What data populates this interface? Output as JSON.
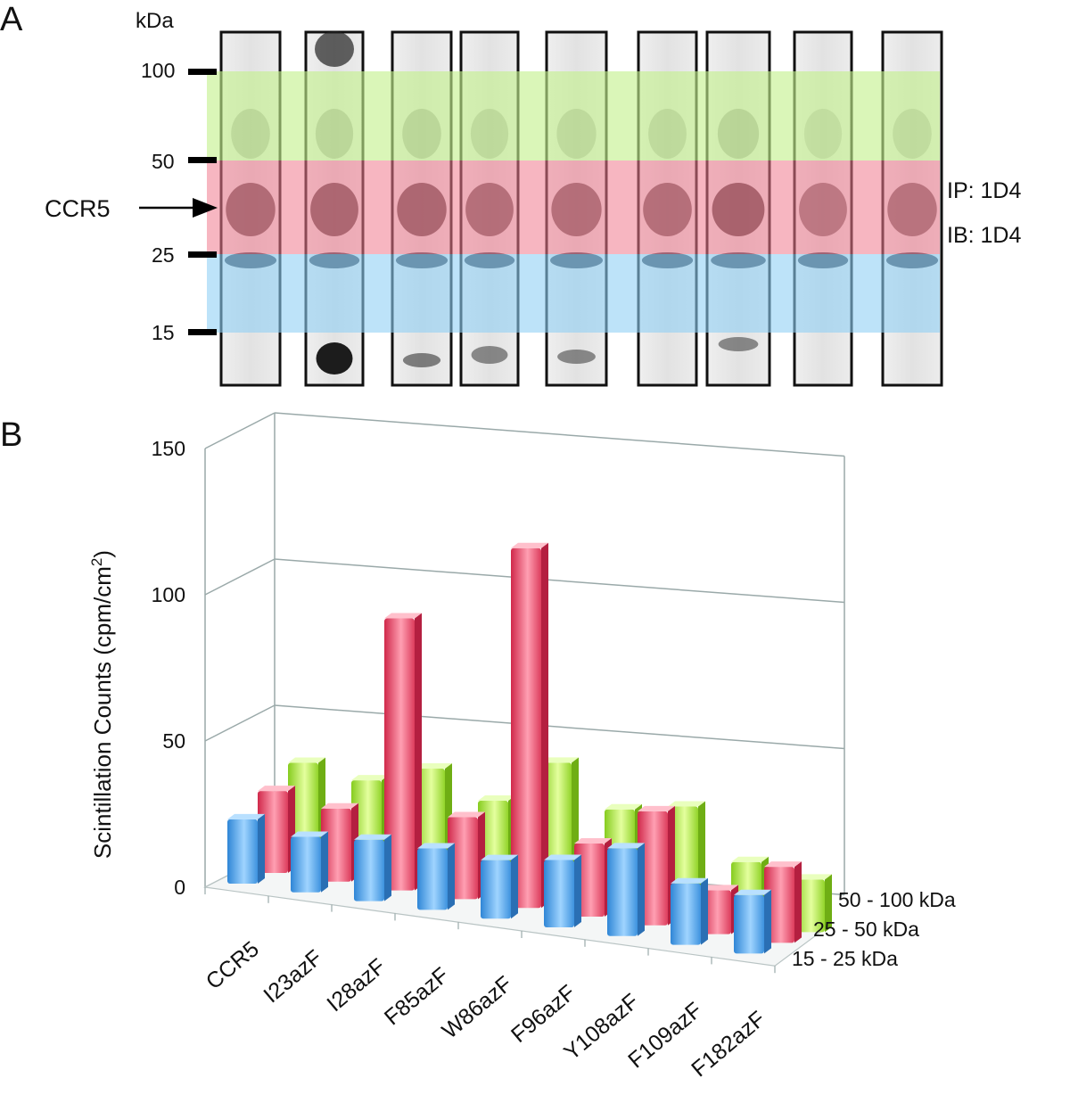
{
  "panel_a": {
    "panel_letter": "A",
    "mw_unit": "kDa",
    "mw_markers": [
      "100",
      "50",
      "25",
      "15"
    ],
    "protein_label": "CCR5",
    "ip_label": "IP: 1D4",
    "ib_label": "IB: 1D4",
    "band_colors": {
      "high": "#c4f08c",
      "mid": "#f07a8e",
      "low": "#8ecff5"
    },
    "lane_count": 9
  },
  "panel_b": {
    "panel_letter": "B"
  },
  "chart_data": {
    "type": "bar",
    "subtype": "3d-clustered",
    "title": "",
    "ylabel": "Scintillation Counts (cpm/cm",
    "ylabel_superscript": "2",
    "ylabel_suffix": ")",
    "ylim": [
      0,
      150
    ],
    "yticks": [
      "0",
      "50",
      "100",
      "150"
    ],
    "grid": true,
    "categories": [
      "CCR5",
      "I23azF",
      "I28azF",
      "F85azF",
      "W86azF",
      "F96azF",
      "Y108azF",
      "F109azF",
      "F182azF"
    ],
    "series": [
      {
        "name": "15 - 25 kDa",
        "color": "#5aa8e8",
        "values": [
          22,
          19,
          21,
          21,
          20,
          23,
          30,
          21,
          20
        ]
      },
      {
        "name": "25 - 50 kDa",
        "color": "#ec5a78",
        "values": [
          28,
          25,
          93,
          28,
          123,
          25,
          39,
          15,
          26
        ]
      },
      {
        "name": "50 - 100 kDa",
        "color": "#a6e23c",
        "values": [
          34,
          31,
          38,
          30,
          46,
          33,
          37,
          21,
          18
        ]
      }
    ]
  }
}
